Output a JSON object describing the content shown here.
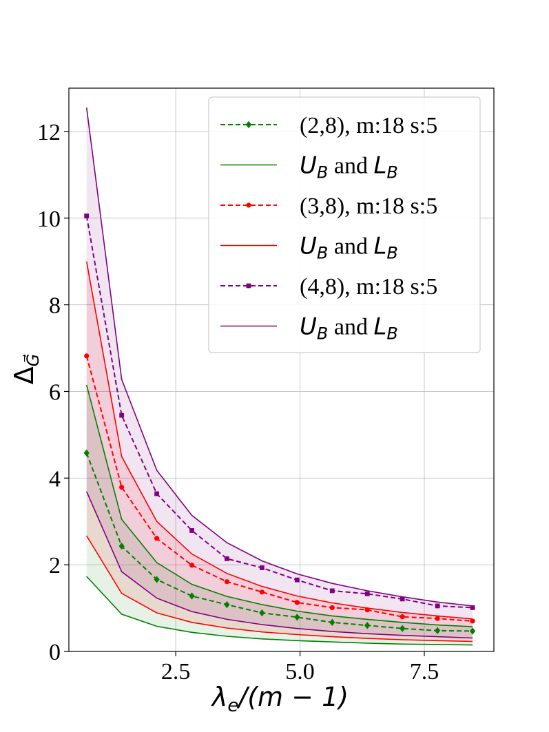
{
  "chart_data": {
    "type": "line",
    "title": "",
    "xlabel": "λe/(m − 1)",
    "xlabel_parts": {
      "lambda": "λ",
      "sub": "e",
      "rest": "/(m − 1)"
    },
    "ylabel": "ΔG⃗",
    "ylabel_parts": {
      "delta": "Δ",
      "sub": "G⃗"
    },
    "xlim": [
      0.35,
      8.9
    ],
    "ylim": [
      0,
      13
    ],
    "xticks": [
      2.5,
      5.0,
      7.5
    ],
    "xtick_labels": [
      "2.5",
      "5.0",
      "7.5"
    ],
    "yticks": [
      0,
      2,
      4,
      6,
      8,
      10,
      12
    ],
    "ytick_labels": [
      "0",
      "2",
      "4",
      "6",
      "8",
      "10",
      "12"
    ],
    "grid": true,
    "legend_position": "top-right",
    "x": [
      0.706,
      1.412,
      2.118,
      2.824,
      3.529,
      4.235,
      4.941,
      5.647,
      6.353,
      7.059,
      7.765,
      8.471
    ],
    "series": [
      {
        "name": "(2,8), m:18 s:5",
        "color": "#008000",
        "marker": "diamond",
        "values": [
          4.58,
          2.43,
          1.66,
          1.28,
          1.08,
          0.89,
          0.79,
          0.67,
          0.6,
          0.53,
          0.48,
          0.47
        ],
        "bounds_label": "UB and LB",
        "bounds_label_parts": {
          "u": "U",
          "usub": "B",
          "mid": " and ",
          "l": "L",
          "lsub": "B"
        },
        "upper": [
          6.15,
          3.05,
          2.05,
          1.55,
          1.27,
          1.08,
          0.93,
          0.82,
          0.74,
          0.67,
          0.61,
          0.57
        ],
        "lower": [
          1.73,
          0.86,
          0.58,
          0.44,
          0.35,
          0.29,
          0.25,
          0.22,
          0.19,
          0.17,
          0.16,
          0.15
        ]
      },
      {
        "name": "(3,8), m:18 s:5",
        "color": "#ff0000",
        "marker": "circle",
        "values": [
          6.82,
          3.79,
          2.61,
          1.99,
          1.61,
          1.37,
          1.13,
          1.01,
          0.96,
          0.8,
          0.76,
          0.7
        ],
        "bounds_label": "UB and LB",
        "bounds_label_parts": {
          "u": "U",
          "usub": "B",
          "mid": " and ",
          "l": "L",
          "lsub": "B"
        },
        "upper": [
          9.0,
          4.5,
          3.0,
          2.25,
          1.8,
          1.5,
          1.28,
          1.12,
          1.0,
          0.9,
          0.82,
          0.75
        ],
        "lower": [
          2.67,
          1.34,
          0.89,
          0.67,
          0.54,
          0.45,
          0.39,
          0.34,
          0.3,
          0.27,
          0.25,
          0.23
        ]
      },
      {
        "name": "(4,8), m:18 s:5",
        "color": "#800080",
        "marker": "square",
        "values": [
          10.05,
          5.45,
          3.64,
          2.79,
          2.14,
          1.93,
          1.65,
          1.4,
          1.33,
          1.21,
          1.05,
          1.01
        ],
        "bounds_label": "UB and LB",
        "bounds_label_parts": {
          "u": "U",
          "usub": "B",
          "mid": " and ",
          "l": "L",
          "lsub": "B"
        },
        "upper": [
          12.55,
          6.28,
          4.18,
          3.14,
          2.51,
          2.09,
          1.79,
          1.57,
          1.4,
          1.26,
          1.14,
          1.05
        ],
        "lower": [
          3.69,
          1.84,
          1.23,
          0.92,
          0.74,
          0.62,
          0.53,
          0.46,
          0.41,
          0.37,
          0.34,
          0.31
        ]
      }
    ]
  }
}
